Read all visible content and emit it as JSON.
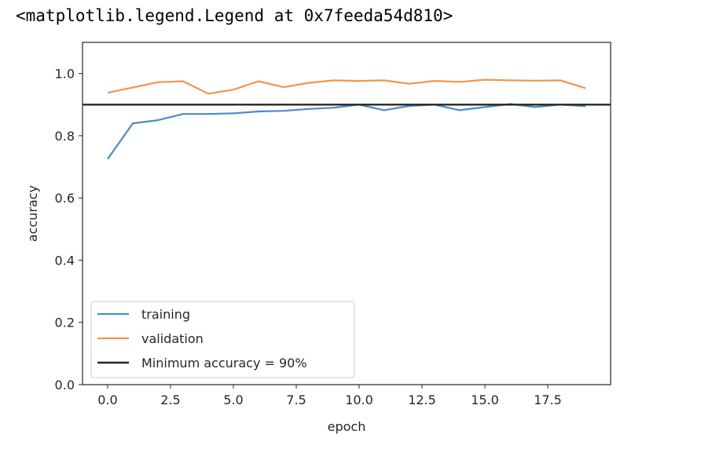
{
  "output_text": "<matplotlib.legend.Legend at 0x7feeda54d810>",
  "chart_data": {
    "type": "line",
    "xlabel": "epoch",
    "ylabel": "accuracy",
    "xlim": [
      -1,
      20
    ],
    "ylim": [
      0,
      1.1
    ],
    "xticks": [
      0,
      2.5,
      5,
      7.5,
      10,
      12.5,
      15,
      17.5
    ],
    "xtick_labels": [
      "0.0",
      "2.5",
      "5.0",
      "7.5",
      "10.0",
      "12.5",
      "15.0",
      "17.5"
    ],
    "yticks": [
      0,
      0.2,
      0.4,
      0.6,
      0.8,
      1.0
    ],
    "ytick_labels": [
      "0.0",
      "0.2",
      "0.4",
      "0.6",
      "0.8",
      "1.0"
    ],
    "grid": false,
    "legend_position": "lower-left",
    "x": [
      0,
      1,
      2,
      3,
      4,
      5,
      6,
      7,
      8,
      9,
      10,
      11,
      12,
      13,
      14,
      15,
      16,
      17,
      18,
      19
    ],
    "series": [
      {
        "name": "training",
        "color": "#4c8ac6",
        "values": [
          0.725,
          0.84,
          0.85,
          0.87,
          0.87,
          0.872,
          0.878,
          0.88,
          0.886,
          0.89,
          0.9,
          0.882,
          0.896,
          0.9,
          0.882,
          0.892,
          0.902,
          0.892,
          0.9,
          0.895
        ]
      },
      {
        "name": "validation",
        "color": "#f0974a",
        "values": [
          0.938,
          0.955,
          0.972,
          0.975,
          0.935,
          0.948,
          0.975,
          0.956,
          0.97,
          0.978,
          0.976,
          0.978,
          0.967,
          0.976,
          0.973,
          0.98,
          0.978,
          0.977,
          0.978,
          0.953
        ]
      }
    ],
    "hline": {
      "name": "Minimum accuracy = 90%",
      "y": 0.9,
      "color": "#262626"
    }
  }
}
